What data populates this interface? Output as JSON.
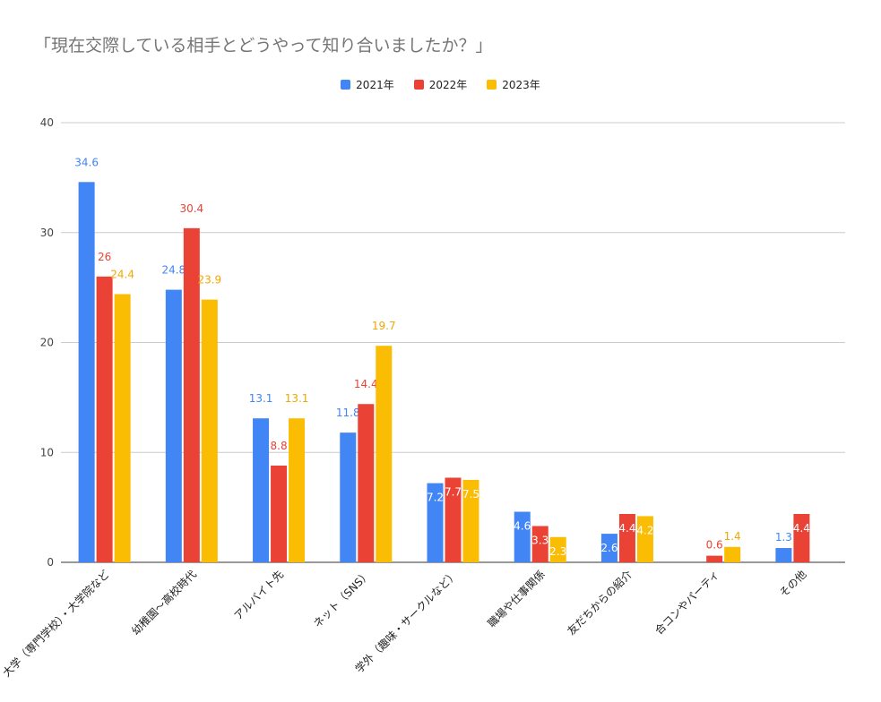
{
  "chart_data": {
    "type": "bar",
    "title": "「現在交際している相手とどうやって知り合いましたか？」",
    "xlabel": "",
    "ylabel": "",
    "ylim": [
      0,
      40
    ],
    "yticks": [
      0,
      10,
      20,
      30,
      40
    ],
    "grid": true,
    "legend_position": "top-center",
    "categories": [
      "大学（専門学校）・大学院など",
      "幼稚園〜高校時代",
      "アルバイト先",
      "ネット（SNS）",
      "学外（趣味・サークルなど）",
      "職場や仕事関係",
      "友だちからの紹介",
      "合コンやパーティ",
      "その他"
    ],
    "series": [
      {
        "name": "2021年",
        "color": "#4285F4",
        "label_color": "#4285F4",
        "values": [
          34.6,
          24.8,
          13.1,
          11.8,
          7.2,
          4.6,
          2.6,
          null,
          1.3
        ],
        "labels": [
          "34.6",
          "24.8",
          "13.1",
          "11.8",
          "7.2",
          "4.6",
          "2.6",
          "",
          "1.3"
        ]
      },
      {
        "name": "2022年",
        "color": "#EA4335",
        "label_color": "#EA4335",
        "values": [
          26,
          30.4,
          8.8,
          14.4,
          7.7,
          3.3,
          4.4,
          0.6,
          4.4
        ],
        "labels": [
          "26",
          "30.4",
          "8.8",
          "14.4",
          "7.7",
          "3.3",
          "4.4",
          "0.6",
          "4.4"
        ]
      },
      {
        "name": "2023年",
        "color": "#FBBC04",
        "label_color": "#F2A600",
        "values": [
          24.4,
          23.9,
          13.1,
          19.7,
          7.5,
          2.3,
          4.2,
          1.4,
          null
        ],
        "labels": [
          "24.4",
          "23.9",
          "13.1",
          "19.7",
          "7.5",
          "2.3",
          "4.2",
          "1.4",
          ""
        ]
      }
    ]
  }
}
